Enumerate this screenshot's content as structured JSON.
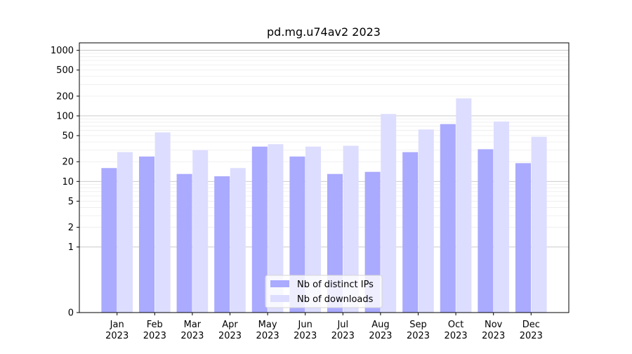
{
  "chart_data": {
    "type": "bar",
    "title": "pd.mg.u74av2 2023",
    "xlabel": "",
    "ylabel": "",
    "yscale": "symlog",
    "ylim": [
      0,
      1300
    ],
    "grid": "horizontal",
    "legend_position": "bottom-center",
    "categories": [
      [
        "Jan",
        "2023"
      ],
      [
        "Feb",
        "2023"
      ],
      [
        "Mar",
        "2023"
      ],
      [
        "Apr",
        "2023"
      ],
      [
        "May",
        "2023"
      ],
      [
        "Jun",
        "2023"
      ],
      [
        "Jul",
        "2023"
      ],
      [
        "Aug",
        "2023"
      ],
      [
        "Sep",
        "2023"
      ],
      [
        "Oct",
        "2023"
      ],
      [
        "Nov",
        "2023"
      ],
      [
        "Dec",
        "2023"
      ]
    ],
    "yticks": [
      {
        "value": 0,
        "label": "0"
      },
      {
        "value": 1,
        "label": "1"
      },
      {
        "value": 2,
        "label": "2"
      },
      {
        "value": 5,
        "label": "5"
      },
      {
        "value": 10,
        "label": "10"
      },
      {
        "value": 20,
        "label": "20"
      },
      {
        "value": 50,
        "label": "50"
      },
      {
        "value": 100,
        "label": "100"
      },
      {
        "value": 200,
        "label": "200"
      },
      {
        "value": 500,
        "label": "500"
      },
      {
        "value": 1000,
        "label": "1000"
      }
    ],
    "series": [
      {
        "name": "Nb of distinct IPs",
        "color": "#aaaaff",
        "values": [
          16,
          24,
          13,
          12,
          34,
          24,
          13,
          14,
          28,
          75,
          31,
          19
        ]
      },
      {
        "name": "Nb of downloads",
        "color": "#ddddff",
        "values": [
          28,
          56,
          30,
          16,
          37,
          34,
          35,
          107,
          62,
          185,
          82,
          48
        ]
      }
    ]
  }
}
